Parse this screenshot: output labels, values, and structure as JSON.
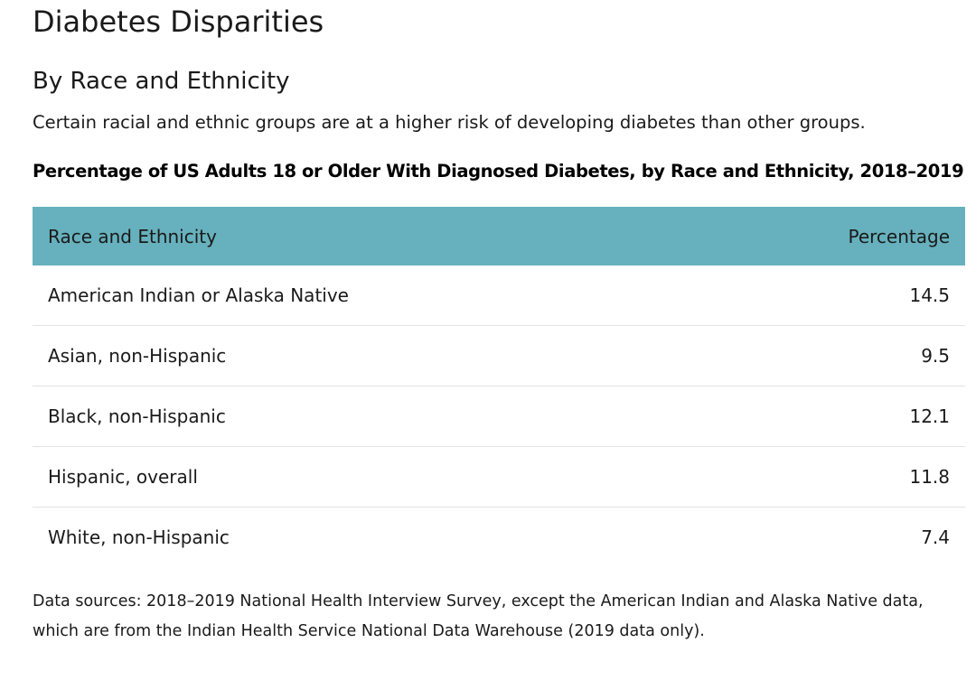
{
  "page": {
    "title": "Diabetes Disparities",
    "section_title": "By Race and Ethnicity",
    "intro": "Certain racial and ethnic groups are at a higher risk of developing diabetes than other groups."
  },
  "table": {
    "caption": "Percentage of US Adults 18 or Older With Diagnosed Diabetes, by Race and Ethnicity, 2018–2019",
    "header_color": "#66b1bd",
    "columns": [
      "Race and Ethnicity",
      "Percentage"
    ],
    "rows": [
      {
        "group": "American Indian or Alaska Native",
        "percentage": "14.5"
      },
      {
        "group": "Asian, non-Hispanic",
        "percentage": "9.5"
      },
      {
        "group": "Black, non-Hispanic",
        "percentage": "12.1"
      },
      {
        "group": "Hispanic, overall",
        "percentage": "11.8"
      },
      {
        "group": "White, non-Hispanic",
        "percentage": "7.4"
      }
    ]
  },
  "footer": {
    "sources": "Data sources: 2018–2019 National Health Interview Survey, except the American Indian and Alaska Native data, which are from the Indian Health Service National Data Warehouse (2019 data only)."
  },
  "chart_data": {
    "type": "table",
    "title": "Percentage of US Adults 18 or Older With Diagnosed Diabetes, by Race and Ethnicity, 2018–2019",
    "columns": [
      "Race and Ethnicity",
      "Percentage"
    ],
    "categories": [
      "American Indian or Alaska Native",
      "Asian, non-Hispanic",
      "Black, non-Hispanic",
      "Hispanic, overall",
      "White, non-Hispanic"
    ],
    "values": [
      14.5,
      9.5,
      12.1,
      11.8,
      7.4
    ]
  }
}
